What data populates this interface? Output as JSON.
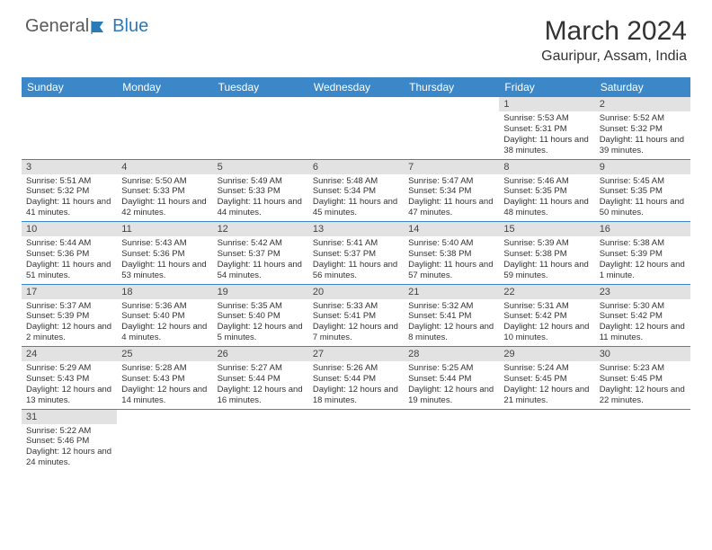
{
  "logo": {
    "text1": "General",
    "text2": "Blue"
  },
  "title": "March 2024",
  "location": "Gauripur, Assam, India",
  "colors": {
    "header_bg": "#3b87c8",
    "header_text": "#ffffff",
    "daynum_bg": "#e2e2e2",
    "row_border": "#3b87c8",
    "body_text": "#333333",
    "page_bg": "#ffffff",
    "logo_gray": "#5a5a5a",
    "logo_blue": "#2a7ab8"
  },
  "typography": {
    "title_fontsize": 30,
    "location_fontsize": 16,
    "dow_fontsize": 12,
    "daynum_fontsize": 11,
    "body_fontsize": 9.5
  },
  "days_of_week": [
    "Sunday",
    "Monday",
    "Tuesday",
    "Wednesday",
    "Thursday",
    "Friday",
    "Saturday"
  ],
  "weeks": [
    [
      {
        "n": "",
        "lines": []
      },
      {
        "n": "",
        "lines": []
      },
      {
        "n": "",
        "lines": []
      },
      {
        "n": "",
        "lines": []
      },
      {
        "n": "",
        "lines": []
      },
      {
        "n": "1",
        "lines": [
          "Sunrise: 5:53 AM",
          "Sunset: 5:31 PM",
          "Daylight: 11 hours and 38 minutes."
        ]
      },
      {
        "n": "2",
        "lines": [
          "Sunrise: 5:52 AM",
          "Sunset: 5:32 PM",
          "Daylight: 11 hours and 39 minutes."
        ]
      }
    ],
    [
      {
        "n": "3",
        "lines": [
          "Sunrise: 5:51 AM",
          "Sunset: 5:32 PM",
          "Daylight: 11 hours and 41 minutes."
        ]
      },
      {
        "n": "4",
        "lines": [
          "Sunrise: 5:50 AM",
          "Sunset: 5:33 PM",
          "Daylight: 11 hours and 42 minutes."
        ]
      },
      {
        "n": "5",
        "lines": [
          "Sunrise: 5:49 AM",
          "Sunset: 5:33 PM",
          "Daylight: 11 hours and 44 minutes."
        ]
      },
      {
        "n": "6",
        "lines": [
          "Sunrise: 5:48 AM",
          "Sunset: 5:34 PM",
          "Daylight: 11 hours and 45 minutes."
        ]
      },
      {
        "n": "7",
        "lines": [
          "Sunrise: 5:47 AM",
          "Sunset: 5:34 PM",
          "Daylight: 11 hours and 47 minutes."
        ]
      },
      {
        "n": "8",
        "lines": [
          "Sunrise: 5:46 AM",
          "Sunset: 5:35 PM",
          "Daylight: 11 hours and 48 minutes."
        ]
      },
      {
        "n": "9",
        "lines": [
          "Sunrise: 5:45 AM",
          "Sunset: 5:35 PM",
          "Daylight: 11 hours and 50 minutes."
        ]
      }
    ],
    [
      {
        "n": "10",
        "lines": [
          "Sunrise: 5:44 AM",
          "Sunset: 5:36 PM",
          "Daylight: 11 hours and 51 minutes."
        ]
      },
      {
        "n": "11",
        "lines": [
          "Sunrise: 5:43 AM",
          "Sunset: 5:36 PM",
          "Daylight: 11 hours and 53 minutes."
        ]
      },
      {
        "n": "12",
        "lines": [
          "Sunrise: 5:42 AM",
          "Sunset: 5:37 PM",
          "Daylight: 11 hours and 54 minutes."
        ]
      },
      {
        "n": "13",
        "lines": [
          "Sunrise: 5:41 AM",
          "Sunset: 5:37 PM",
          "Daylight: 11 hours and 56 minutes."
        ]
      },
      {
        "n": "14",
        "lines": [
          "Sunrise: 5:40 AM",
          "Sunset: 5:38 PM",
          "Daylight: 11 hours and 57 minutes."
        ]
      },
      {
        "n": "15",
        "lines": [
          "Sunrise: 5:39 AM",
          "Sunset: 5:38 PM",
          "Daylight: 11 hours and 59 minutes."
        ]
      },
      {
        "n": "16",
        "lines": [
          "Sunrise: 5:38 AM",
          "Sunset: 5:39 PM",
          "Daylight: 12 hours and 1 minute."
        ]
      }
    ],
    [
      {
        "n": "17",
        "lines": [
          "Sunrise: 5:37 AM",
          "Sunset: 5:39 PM",
          "Daylight: 12 hours and 2 minutes."
        ]
      },
      {
        "n": "18",
        "lines": [
          "Sunrise: 5:36 AM",
          "Sunset: 5:40 PM",
          "Daylight: 12 hours and 4 minutes."
        ]
      },
      {
        "n": "19",
        "lines": [
          "Sunrise: 5:35 AM",
          "Sunset: 5:40 PM",
          "Daylight: 12 hours and 5 minutes."
        ]
      },
      {
        "n": "20",
        "lines": [
          "Sunrise: 5:33 AM",
          "Sunset: 5:41 PM",
          "Daylight: 12 hours and 7 minutes."
        ]
      },
      {
        "n": "21",
        "lines": [
          "Sunrise: 5:32 AM",
          "Sunset: 5:41 PM",
          "Daylight: 12 hours and 8 minutes."
        ]
      },
      {
        "n": "22",
        "lines": [
          "Sunrise: 5:31 AM",
          "Sunset: 5:42 PM",
          "Daylight: 12 hours and 10 minutes."
        ]
      },
      {
        "n": "23",
        "lines": [
          "Sunrise: 5:30 AM",
          "Sunset: 5:42 PM",
          "Daylight: 12 hours and 11 minutes."
        ]
      }
    ],
    [
      {
        "n": "24",
        "lines": [
          "Sunrise: 5:29 AM",
          "Sunset: 5:43 PM",
          "Daylight: 12 hours and 13 minutes."
        ]
      },
      {
        "n": "25",
        "lines": [
          "Sunrise: 5:28 AM",
          "Sunset: 5:43 PM",
          "Daylight: 12 hours and 14 minutes."
        ]
      },
      {
        "n": "26",
        "lines": [
          "Sunrise: 5:27 AM",
          "Sunset: 5:44 PM",
          "Daylight: 12 hours and 16 minutes."
        ]
      },
      {
        "n": "27",
        "lines": [
          "Sunrise: 5:26 AM",
          "Sunset: 5:44 PM",
          "Daylight: 12 hours and 18 minutes."
        ]
      },
      {
        "n": "28",
        "lines": [
          "Sunrise: 5:25 AM",
          "Sunset: 5:44 PM",
          "Daylight: 12 hours and 19 minutes."
        ]
      },
      {
        "n": "29",
        "lines": [
          "Sunrise: 5:24 AM",
          "Sunset: 5:45 PM",
          "Daylight: 12 hours and 21 minutes."
        ]
      },
      {
        "n": "30",
        "lines": [
          "Sunrise: 5:23 AM",
          "Sunset: 5:45 PM",
          "Daylight: 12 hours and 22 minutes."
        ]
      }
    ],
    [
      {
        "n": "31",
        "lines": [
          "Sunrise: 5:22 AM",
          "Sunset: 5:46 PM",
          "Daylight: 12 hours and 24 minutes."
        ]
      },
      {
        "n": "",
        "lines": []
      },
      {
        "n": "",
        "lines": []
      },
      {
        "n": "",
        "lines": []
      },
      {
        "n": "",
        "lines": []
      },
      {
        "n": "",
        "lines": []
      },
      {
        "n": "",
        "lines": []
      }
    ]
  ]
}
